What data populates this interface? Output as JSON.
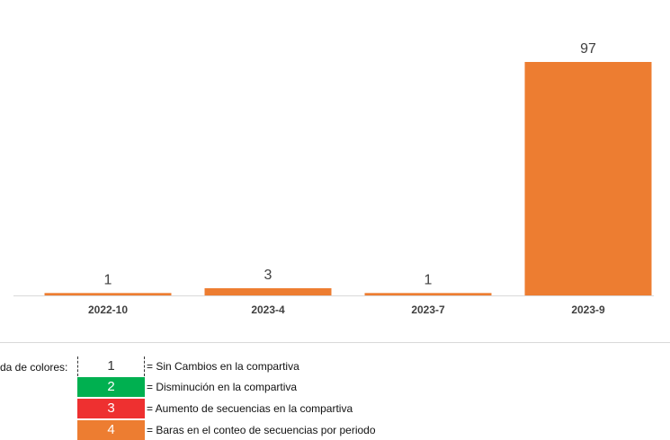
{
  "chart_data": {
    "type": "bar",
    "categories": [
      "2022-10",
      "2023-4",
      "2023-7",
      "2023-9"
    ],
    "values": [
      1,
      3,
      1,
      97
    ],
    "bar_color": "#ED7D31",
    "ylim": [
      0,
      97
    ],
    "title": "",
    "xlabel": "",
    "ylabel": "",
    "grid": false,
    "legend": null
  },
  "color_legend": {
    "title": "da de colores:",
    "items": [
      {
        "value": "1",
        "label": "= Sin Cambios en la compartiva",
        "color": "#ffffff",
        "style": "dashed"
      },
      {
        "value": "2",
        "label": "= Disminución en la compartiva",
        "color": "#00B050",
        "style": "filled"
      },
      {
        "value": "3",
        "label": "= Aumento de secuencias en la compartiva",
        "color": "#EE3030",
        "style": "filled"
      },
      {
        "value": "4",
        "label": "= Baras en el conteo de secuencias por periodo",
        "color": "#ED7D31",
        "style": "filled"
      }
    ]
  }
}
